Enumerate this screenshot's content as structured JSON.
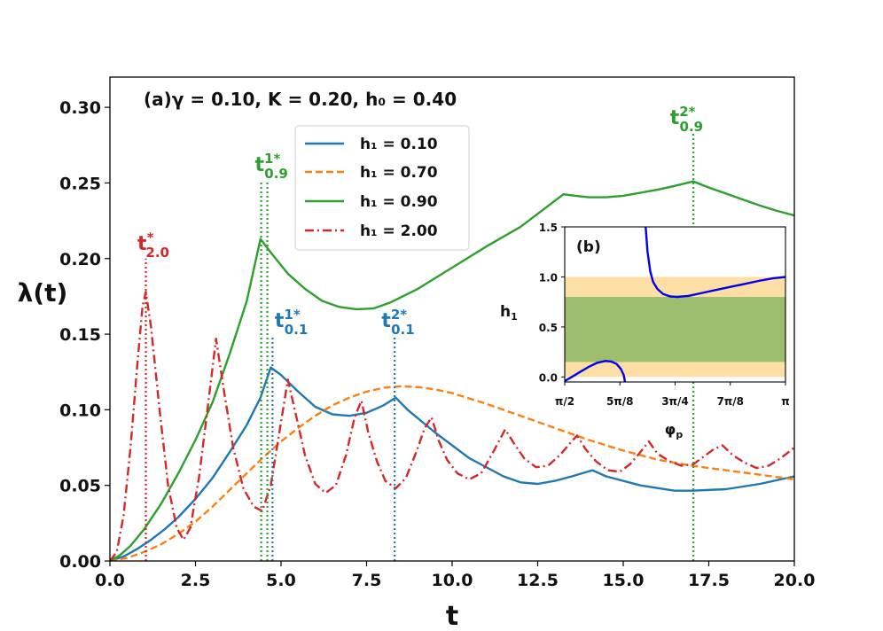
{
  "chart_data": [
    {
      "type": "line",
      "panel": "a",
      "annotation": "(a)γ = 0.10, K = 0.20, h₀ = 0.40",
      "xlabel": "t",
      "ylabel": "λ(t)",
      "xlim": [
        0,
        20
      ],
      "ylim": [
        0,
        0.32
      ],
      "xticks": [
        0,
        2.5,
        5,
        7.5,
        10,
        12.5,
        15,
        17.5,
        20
      ],
      "xtick_labels": [
        "0.0",
        "2.5",
        "5.0",
        "7.5",
        "10.0",
        "12.5",
        "15.0",
        "17.5",
        "20.0"
      ],
      "yticks": [
        0,
        0.05,
        0.1,
        0.15,
        0.2,
        0.25,
        0.3
      ],
      "ytick_labels": [
        "0.00",
        "0.05",
        "0.10",
        "0.15",
        "0.20",
        "0.25",
        "0.30"
      ],
      "legend_position": "upper-center",
      "series": [
        {
          "name": "h₁ = 0.10",
          "color": "#1f77b4",
          "dash": "solid",
          "points": [
            [
              0,
              0
            ],
            [
              0.4,
              0.003
            ],
            [
              0.8,
              0.008
            ],
            [
              1.2,
              0.014
            ],
            [
              1.6,
              0.021
            ],
            [
              2,
              0.029
            ],
            [
              2.5,
              0.041
            ],
            [
              3,
              0.055
            ],
            [
              3.5,
              0.072
            ],
            [
              4,
              0.09
            ],
            [
              4.4,
              0.108
            ],
            [
              4.7,
              0.128
            ],
            [
              5,
              0.123
            ],
            [
              5.5,
              0.112
            ],
            [
              6,
              0.102
            ],
            [
              6.5,
              0.097
            ],
            [
              7,
              0.096
            ],
            [
              7.5,
              0.098
            ],
            [
              8,
              0.103
            ],
            [
              8.35,
              0.108
            ],
            [
              8.7,
              0.1
            ],
            [
              9.5,
              0.085
            ],
            [
              10.5,
              0.068
            ],
            [
              11.5,
              0.056
            ],
            [
              12,
              0.052
            ],
            [
              12.5,
              0.051
            ],
            [
              13,
              0.053
            ],
            [
              13.5,
              0.056
            ],
            [
              14.1,
              0.06
            ],
            [
              14.5,
              0.056
            ],
            [
              15.5,
              0.05
            ],
            [
              16.5,
              0.0465
            ],
            [
              17,
              0.0465
            ],
            [
              18,
              0.0475
            ],
            [
              19,
              0.051
            ],
            [
              20,
              0.056
            ]
          ]
        },
        {
          "name": "h₁ = 0.70",
          "color": "#ff7f0e",
          "dash": "dashed",
          "points": [
            [
              0,
              0
            ],
            [
              0.5,
              0.002
            ],
            [
              1,
              0.006
            ],
            [
              1.5,
              0.011
            ],
            [
              2,
              0.018
            ],
            [
              2.5,
              0.026
            ],
            [
              3,
              0.036
            ],
            [
              3.5,
              0.047
            ],
            [
              4,
              0.058
            ],
            [
              4.5,
              0.069
            ],
            [
              5,
              0.079
            ],
            [
              5.5,
              0.088
            ],
            [
              6,
              0.096
            ],
            [
              6.5,
              0.103
            ],
            [
              7,
              0.108
            ],
            [
              7.5,
              0.112
            ],
            [
              8,
              0.1145
            ],
            [
              8.5,
              0.1155
            ],
            [
              9,
              0.115
            ],
            [
              9.5,
              0.1135
            ],
            [
              10,
              0.111
            ],
            [
              11,
              0.104
            ],
            [
              12,
              0.096
            ],
            [
              13,
              0.088
            ],
            [
              14,
              0.08
            ],
            [
              15,
              0.073
            ],
            [
              16,
              0.067
            ],
            [
              17,
              0.063
            ],
            [
              18,
              0.06
            ],
            [
              19,
              0.057
            ],
            [
              20,
              0.054
            ]
          ]
        },
        {
          "name": "h₁ = 0.90",
          "color": "#2ca02c",
          "dash": "solid",
          "points": [
            [
              0,
              0
            ],
            [
              0.3,
              0.004
            ],
            [
              0.6,
              0.01
            ],
            [
              1,
              0.021
            ],
            [
              1.5,
              0.038
            ],
            [
              2,
              0.058
            ],
            [
              2.5,
              0.08
            ],
            [
              3,
              0.105
            ],
            [
              3.5,
              0.137
            ],
            [
              4,
              0.172
            ],
            [
              4.4,
              0.213
            ],
            [
              4.7,
              0.204
            ],
            [
              5.2,
              0.19
            ],
            [
              5.7,
              0.18
            ],
            [
              6.2,
              0.172
            ],
            [
              6.7,
              0.168
            ],
            [
              7.2,
              0.1665
            ],
            [
              7.7,
              0.167
            ],
            [
              8.2,
              0.171
            ],
            [
              9,
              0.18
            ],
            [
              10,
              0.194
            ],
            [
              11,
              0.208
            ],
            [
              12,
              0.221
            ],
            [
              12.7,
              0.233
            ],
            [
              13.25,
              0.2425
            ],
            [
              13.6,
              0.2415
            ],
            [
              14,
              0.2405
            ],
            [
              14.5,
              0.2405
            ],
            [
              15,
              0.2415
            ],
            [
              15.5,
              0.2435
            ],
            [
              16,
              0.2455
            ],
            [
              16.5,
              0.248
            ],
            [
              17.05,
              0.251
            ],
            [
              17.5,
              0.247
            ],
            [
              18,
              0.243
            ],
            [
              18.5,
              0.239
            ],
            [
              19,
              0.235
            ],
            [
              19.5,
              0.2315
            ],
            [
              20,
              0.2285
            ]
          ]
        },
        {
          "name": "h₁ = 2.00",
          "color": "#d62728",
          "dash": "dashdot",
          "points": [
            [
              0,
              0
            ],
            [
              0.2,
              0.006
            ],
            [
              0.4,
              0.03
            ],
            [
              0.6,
              0.075
            ],
            [
              0.8,
              0.13
            ],
            [
              0.95,
              0.168
            ],
            [
              1.05,
              0.178
            ],
            [
              1.2,
              0.155
            ],
            [
              1.45,
              0.1
            ],
            [
              1.7,
              0.05
            ],
            [
              1.95,
              0.022
            ],
            [
              2.15,
              0.014
            ],
            [
              2.35,
              0.022
            ],
            [
              2.6,
              0.055
            ],
            [
              2.85,
              0.1
            ],
            [
              3.1,
              0.147
            ],
            [
              3.35,
              0.11
            ],
            [
              3.6,
              0.075
            ],
            [
              3.9,
              0.048
            ],
            [
              4.2,
              0.036
            ],
            [
              4.45,
              0.033
            ],
            [
              4.7,
              0.05
            ],
            [
              4.95,
              0.085
            ],
            [
              5.2,
              0.12
            ],
            [
              5.45,
              0.095
            ],
            [
              5.7,
              0.07
            ],
            [
              6,
              0.051
            ],
            [
              6.3,
              0.045
            ],
            [
              6.6,
              0.05
            ],
            [
              6.9,
              0.07
            ],
            [
              7.15,
              0.095
            ],
            [
              7.35,
              0.106
            ],
            [
              7.55,
              0.085
            ],
            [
              7.8,
              0.066
            ],
            [
              8.05,
              0.053
            ],
            [
              8.35,
              0.048
            ],
            [
              8.65,
              0.055
            ],
            [
              8.95,
              0.072
            ],
            [
              9.2,
              0.088
            ],
            [
              9.4,
              0.095
            ],
            [
              9.6,
              0.08
            ],
            [
              9.85,
              0.067
            ],
            [
              10.15,
              0.058
            ],
            [
              10.5,
              0.054
            ],
            [
              10.85,
              0.058
            ],
            [
              11.2,
              0.072
            ],
            [
              11.55,
              0.087
            ],
            [
              11.8,
              0.078
            ],
            [
              12.1,
              0.068
            ],
            [
              12.45,
              0.062
            ],
            [
              12.8,
              0.063
            ],
            [
              13.15,
              0.07
            ],
            [
              13.45,
              0.078
            ],
            [
              13.65,
              0.083
            ],
            [
              13.9,
              0.074
            ],
            [
              14.2,
              0.066
            ],
            [
              14.55,
              0.06
            ],
            [
              14.9,
              0.059
            ],
            [
              15.2,
              0.064
            ],
            [
              15.5,
              0.072
            ],
            [
              15.75,
              0.079
            ],
            [
              16,
              0.071
            ],
            [
              16.35,
              0.066
            ],
            [
              16.7,
              0.063
            ],
            [
              17.05,
              0.064
            ],
            [
              17.35,
              0.069
            ],
            [
              17.65,
              0.074
            ],
            [
              17.9,
              0.0765
            ],
            [
              18.2,
              0.07
            ],
            [
              18.55,
              0.065
            ],
            [
              18.9,
              0.0615
            ],
            [
              19.25,
              0.063
            ],
            [
              19.6,
              0.068
            ],
            [
              20,
              0.075
            ]
          ]
        }
      ],
      "markers": [
        {
          "label_main": "t",
          "label_sup": "*",
          "label_sub": "2.0",
          "x": 1.05,
          "y_top": 0.2,
          "color": "#d62728",
          "label_x_offset": 0.22
        },
        {
          "label_main": "t",
          "label_sup": "1*",
          "label_sub": "0.9",
          "x": 4.42,
          "y_top": 0.252,
          "color": "#2ca02c",
          "label_x_offset": 0.3
        },
        {
          "label_main": "t",
          "label_sup": "1*",
          "label_sub": "0.1",
          "x": 4.75,
          "y_top": 0.149,
          "color": "#1f77b4",
          "label_x_offset": 0.55
        },
        {
          "label_main": "t",
          "label_sup": "2*",
          "label_sub": "0.1",
          "x": 8.32,
          "y_top": 0.149,
          "color": "#1f77b4",
          "label_x_offset": 0.1
        },
        {
          "label_main": "t",
          "label_sup": "2*",
          "label_sub": "0.9",
          "x": 17.05,
          "y_top": 0.283,
          "color": "#2ca02c",
          "label_x_offset": -0.2
        }
      ],
      "second_markers": [
        {
          "x": 4.6,
          "color": "#2ca02c"
        }
      ]
    },
    {
      "type": "line",
      "panel": "b",
      "annotation": "(b)",
      "xlabel": "φ",
      "xlabel_sub": "p",
      "ylabel": "h",
      "ylabel_sub": "1",
      "xlim": [
        1.5708,
        3.1416
      ],
      "ylim": [
        -0.05,
        1.5
      ],
      "xticks": [
        1.5708,
        1.9635,
        2.3562,
        2.7489,
        3.1416
      ],
      "xtick_labels": [
        "π/2",
        "5π/8",
        "3π/4",
        "7π/8",
        "π"
      ],
      "yticks": [
        0,
        0.5,
        1,
        1.5
      ],
      "ytick_labels": [
        "0.0",
        "0.5",
        "1.0",
        "1.5"
      ],
      "bands": [
        {
          "y0": 0,
          "y1": 1,
          "color": "#fddfa6"
        },
        {
          "y0": 0.15,
          "y1": 0.8,
          "color": "#9dbd6c"
        }
      ],
      "curves": [
        {
          "name": "upper-branch",
          "color": "#0000ee",
          "points": [
            [
              2.147,
              1.5
            ],
            [
              2.16,
              1.25
            ],
            [
              2.18,
              1.05
            ],
            [
              2.2,
              0.95
            ],
            [
              2.23,
              0.88
            ],
            [
              2.27,
              0.83
            ],
            [
              2.32,
              0.805
            ],
            [
              2.37,
              0.8
            ],
            [
              2.45,
              0.81
            ],
            [
              2.55,
              0.84
            ],
            [
              2.65,
              0.87
            ],
            [
              2.75,
              0.9
            ],
            [
              2.85,
              0.93
            ],
            [
              2.95,
              0.96
            ],
            [
              3.05,
              0.985
            ],
            [
              3.1416,
              1.0
            ]
          ]
        },
        {
          "name": "lower-branch",
          "color": "#0000ee",
          "points": [
            [
              1.5708,
              -0.04
            ],
            [
              1.62,
              0.0
            ],
            [
              1.68,
              0.05
            ],
            [
              1.74,
              0.1
            ],
            [
              1.8,
              0.14
            ],
            [
              1.86,
              0.16
            ],
            [
              1.9,
              0.155
            ],
            [
              1.94,
              0.13
            ],
            [
              1.97,
              0.08
            ],
            [
              1.99,
              0.02
            ],
            [
              2.0,
              -0.05
            ]
          ]
        }
      ]
    }
  ]
}
